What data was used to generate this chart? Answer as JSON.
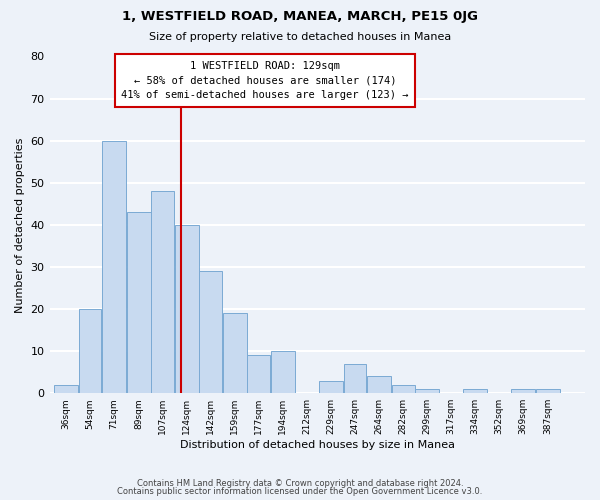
{
  "title": "1, WESTFIELD ROAD, MANEA, MARCH, PE15 0JG",
  "subtitle": "Size of property relative to detached houses in Manea",
  "xlabel": "Distribution of detached houses by size in Manea",
  "ylabel": "Number of detached properties",
  "bar_color": "#c8daf0",
  "bar_edge_color": "#7baad4",
  "bins": [
    "36sqm",
    "54sqm",
    "71sqm",
    "89sqm",
    "107sqm",
    "124sqm",
    "142sqm",
    "159sqm",
    "177sqm",
    "194sqm",
    "212sqm",
    "229sqm",
    "247sqm",
    "264sqm",
    "282sqm",
    "299sqm",
    "317sqm",
    "334sqm",
    "352sqm",
    "369sqm",
    "387sqm"
  ],
  "values": [
    2,
    20,
    60,
    43,
    48,
    40,
    29,
    19,
    9,
    10,
    0,
    3,
    7,
    4,
    2,
    1,
    0,
    1,
    0,
    1,
    1
  ],
  "bin_edges": [
    36,
    54,
    71,
    89,
    107,
    124,
    142,
    159,
    177,
    194,
    212,
    229,
    247,
    264,
    282,
    299,
    317,
    334,
    352,
    369,
    387,
    405
  ],
  "vline_x": 129,
  "vline_color": "#cc0000",
  "ylim": [
    0,
    80
  ],
  "yticks": [
    0,
    10,
    20,
    30,
    40,
    50,
    60,
    70,
    80
  ],
  "annotation_title": "1 WESTFIELD ROAD: 129sqm",
  "annotation_line1": "← 58% of detached houses are smaller (174)",
  "annotation_line2": "41% of semi-detached houses are larger (123) →",
  "annotation_box_color": "#ffffff",
  "annotation_border_color": "#cc0000",
  "footer_line1": "Contains HM Land Registry data © Crown copyright and database right 2024.",
  "footer_line2": "Contains public sector information licensed under the Open Government Licence v3.0.",
  "background_color": "#edf2f9",
  "grid_color": "#ffffff"
}
